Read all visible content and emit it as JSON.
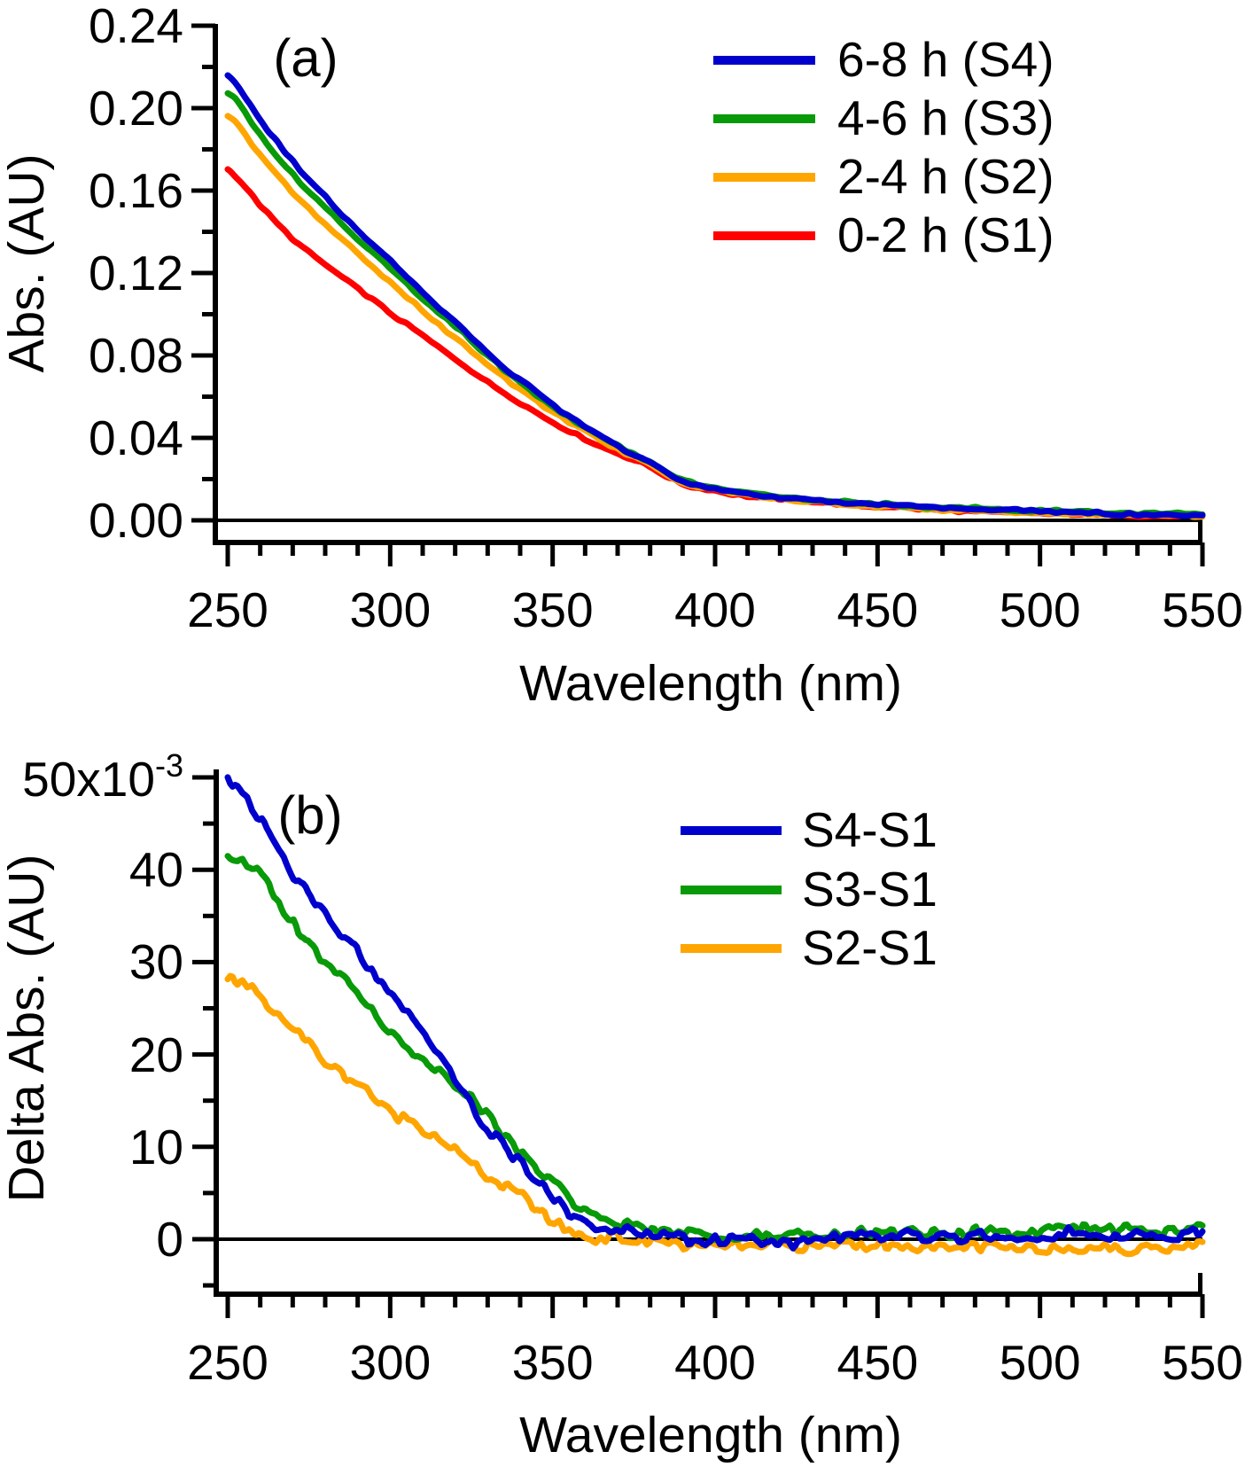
{
  "figure": {
    "panel_a": {
      "label": "(a)",
      "y_tick_labels": [
        "0.00",
        "0.04",
        "0.08",
        "0.12",
        "0.16",
        "0.20",
        "0.24"
      ],
      "x_tick_labels": [
        "250",
        "300",
        "350",
        "400",
        "450",
        "500",
        "550"
      ],
      "legend": [
        {
          "label": "6-8 h (S4)",
          "color": "#0000cc"
        },
        {
          "label": "4-6 h (S3)",
          "color": "#089a08"
        },
        {
          "label": "2-4 h (S2)",
          "color": "#ffa500"
        },
        {
          "label": "0-2 h (S1)",
          "color": "#ff0000"
        }
      ]
    },
    "panel_b": {
      "label": "(b)",
      "y_tick_labels": [
        "0",
        "10",
        "20",
        "30",
        "40"
      ],
      "y_top_label_main": "50x10",
      "y_top_label_sup": "-3",
      "x_tick_labels": [
        "250",
        "300",
        "350",
        "400",
        "450",
        "500",
        "550"
      ],
      "legend": [
        {
          "label": "S4-S1",
          "color": "#0000cc"
        },
        {
          "label": "S3-S1",
          "color": "#089a08"
        },
        {
          "label": "S2-S1",
          "color": "#ffa500"
        }
      ]
    }
  },
  "chart_data": [
    {
      "type": "line",
      "title": "",
      "xlabel": "Wavelength (nm)",
      "ylabel": "Abs. (AU)",
      "xlim": [
        250,
        550
      ],
      "ylim": [
        0,
        0.24
      ],
      "y_major_step": 0.04,
      "y_minor_step": 0.02,
      "x_major_step": 50,
      "x_minor_step": 10,
      "grid": false,
      "legend_position": "upper right",
      "x": [
        250,
        260,
        270,
        280,
        290,
        300,
        310,
        320,
        330,
        340,
        350,
        360,
        370,
        380,
        390,
        400,
        410,
        420,
        430,
        440,
        450,
        460,
        470,
        480,
        490,
        500,
        510,
        520,
        530,
        540,
        550
      ],
      "series": [
        {
          "name": "0-2 h (S1)",
          "color": "#ff0000",
          "values": [
            0.17,
            0.1525,
            0.1368,
            0.1242,
            0.1122,
            0.1008,
            0.0895,
            0.0783,
            0.0673,
            0.0572,
            0.048,
            0.0398,
            0.0325,
            0.026,
            0.018,
            0.0143,
            0.0119,
            0.0102,
            0.0089,
            0.0077,
            0.0067,
            0.0059,
            0.0051,
            0.0045,
            0.0039,
            0.0034,
            0.003,
            0.0027,
            0.0024,
            0.0021,
            0.0019
          ]
        },
        {
          "name": "2-4 h (S2)",
          "color": "#ffa500",
          "values": [
            0.197,
            0.177,
            0.159,
            0.144,
            0.13,
            0.116,
            0.102,
            0.0885,
            0.0755,
            0.0635,
            0.0525,
            0.0432,
            0.0346,
            0.0272,
            0.0185,
            0.0148,
            0.0123,
            0.0105,
            0.0091,
            0.0079,
            0.0069,
            0.006,
            0.0052,
            0.0046,
            0.004,
            0.0035,
            0.0031,
            0.0027,
            0.0024,
            0.0021,
            0.0019
          ]
        },
        {
          "name": "4-6 h (S3)",
          "color": "#089a08",
          "values": [
            0.208,
            0.187,
            0.168,
            0.152,
            0.137,
            0.123,
            0.108,
            0.094,
            0.08,
            0.0672,
            0.0555,
            0.0452,
            0.0359,
            0.0282,
            0.0193,
            0.0158,
            0.0134,
            0.0116,
            0.0102,
            0.009,
            0.008,
            0.0071,
            0.0063,
            0.0057,
            0.0051,
            0.0046,
            0.0042,
            0.0039,
            0.0036,
            0.0033,
            0.0031
          ]
        },
        {
          "name": "6-8 h (S4)",
          "color": "#0000cc",
          "values": [
            0.216,
            0.194,
            0.174,
            0.157,
            0.141,
            0.126,
            0.111,
            0.096,
            0.081,
            0.068,
            0.056,
            0.0455,
            0.036,
            0.028,
            0.019,
            0.0155,
            0.013,
            0.0112,
            0.0098,
            0.0086,
            0.0076,
            0.0067,
            0.0059,
            0.0053,
            0.0047,
            0.0042,
            0.0038,
            0.0034,
            0.0031,
            0.0028,
            0.0026
          ]
        }
      ]
    },
    {
      "type": "line",
      "title": "",
      "xlabel": "Wavelength (nm)",
      "ylabel": "Delta Abs. (AU)",
      "xlim": [
        250,
        550
      ],
      "ylim": [
        -0.006,
        0.05
      ],
      "y_major_step": 0.01,
      "y_minor_step": 0.005,
      "x_major_step": 50,
      "x_minor_step": 10,
      "grid": false,
      "legend_position": "upper right",
      "values_unit": "1e-3 AU",
      "x": [
        250,
        260,
        270,
        280,
        290,
        300,
        310,
        320,
        330,
        340,
        350,
        360,
        370,
        380,
        390,
        400,
        410,
        420,
        430,
        440,
        450,
        460,
        470,
        480,
        490,
        500,
        510,
        520,
        530,
        540,
        550
      ],
      "series": [
        {
          "name": "S2-S1",
          "color": "#ffa500",
          "values": [
            28.5,
            26.5,
            23,
            19.5,
            17,
            14,
            12,
            9.5,
            6.5,
            4.5,
            2,
            0.3,
            0.2,
            -0.2,
            -0.5,
            -0.6,
            -1,
            -0.6,
            -1,
            -0.6,
            -0.6,
            -0.7,
            -1,
            -0.6,
            -0.7,
            -1,
            -0.7,
            -0.7,
            -1.1,
            -0.8,
            -0.7
          ]
        },
        {
          "name": "S3-S1",
          "color": "#089a08",
          "values": [
            41,
            39.5,
            34.5,
            30,
            27,
            22.5,
            19.5,
            16.5,
            13.5,
            9.5,
            6,
            3,
            2,
            1.2,
            0.8,
            0.5,
            0.5,
            0.4,
            0.5,
            0.6,
            0.5,
            0.8,
            0.6,
            0.9,
            0.7,
            0.9,
            1,
            0.8,
            1,
            1,
            1.1
          ]
        },
        {
          "name": "S4-S1",
          "color": "#0000cc",
          "values": [
            50,
            45.5,
            39.5,
            35,
            31,
            26.5,
            22.5,
            17.5,
            12,
            8.5,
            4.5,
            1.5,
            1.2,
            0.6,
            0.2,
            -0.3,
            0,
            -0.4,
            -0.2,
            0.3,
            0,
            0.3,
            0.4,
            0.3,
            0.4,
            0.4,
            0.5,
            0.5,
            0.8,
            0.6,
            0.9
          ]
        }
      ]
    }
  ]
}
